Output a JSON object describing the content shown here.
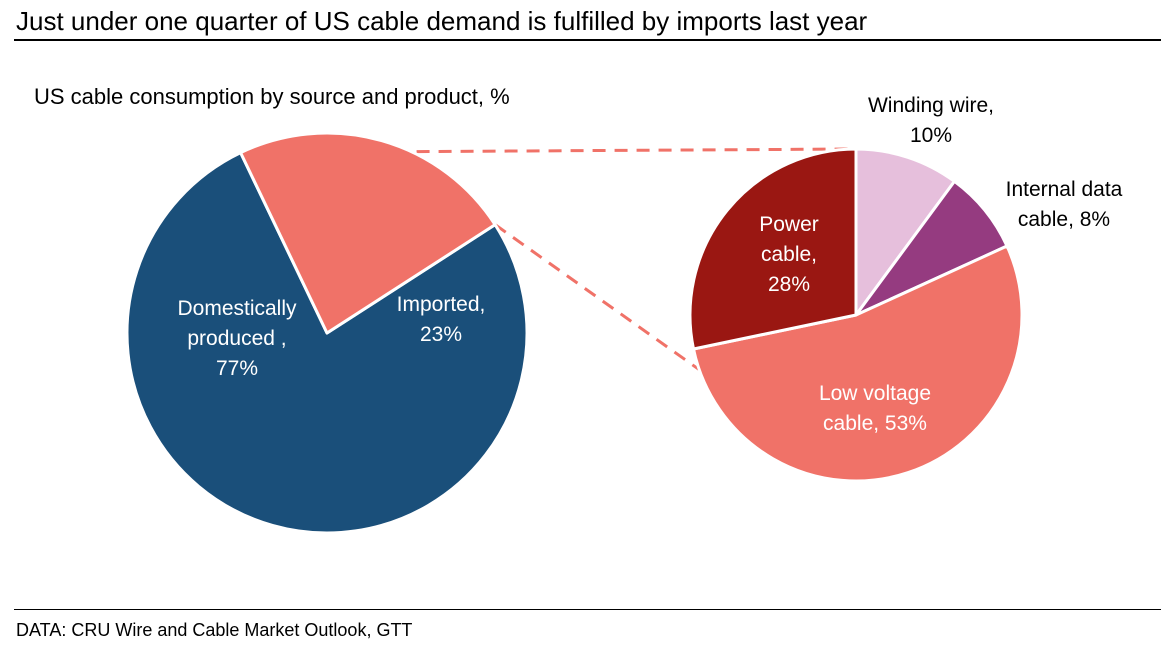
{
  "header": {
    "title": "Just under one quarter of US cable demand is fulfilled by imports last year"
  },
  "footer": {
    "source": "DATA: CRU Wire and Cable Market Outlook, GTT"
  },
  "chart_data": {
    "type": "pie",
    "title": "US cable consumption by source and product, %",
    "pies": [
      {
        "name": "source",
        "slices": [
          {
            "label": "Domestically produced",
            "value": 77,
            "color": "#1a4f7a",
            "label_lines": [
              "Domestically",
              "produced ,",
              "77%"
            ],
            "label_color": "#ffffff"
          },
          {
            "label": "Imported",
            "value": 23,
            "color": "#f07268",
            "label_lines": [
              "Imported,",
              "23%"
            ],
            "label_color": "#ffffff"
          }
        ]
      },
      {
        "name": "imported-product",
        "slices": [
          {
            "label": "Winding wire",
            "value": 10,
            "color": "#e6bfdc",
            "label_lines": [
              "Winding wire,",
              "10%"
            ],
            "label_color": "#000000"
          },
          {
            "label": "Internal data cable",
            "value": 8,
            "color": "#953b80",
            "label_lines": [
              "Internal data",
              "cable, 8%"
            ],
            "label_color": "#000000"
          },
          {
            "label": "Low voltage cable",
            "value": 53,
            "color": "#f07268",
            "label_lines": [
              "Low voltage",
              "cable, 53%"
            ],
            "label_color": "#ffffff"
          },
          {
            "label": "Power cable",
            "value": 28,
            "color": "#9a1712",
            "label_lines": [
              "Power",
              "cable,",
              "28%"
            ],
            "label_color": "#ffffff"
          }
        ]
      }
    ],
    "connector_color": "#f07268"
  }
}
